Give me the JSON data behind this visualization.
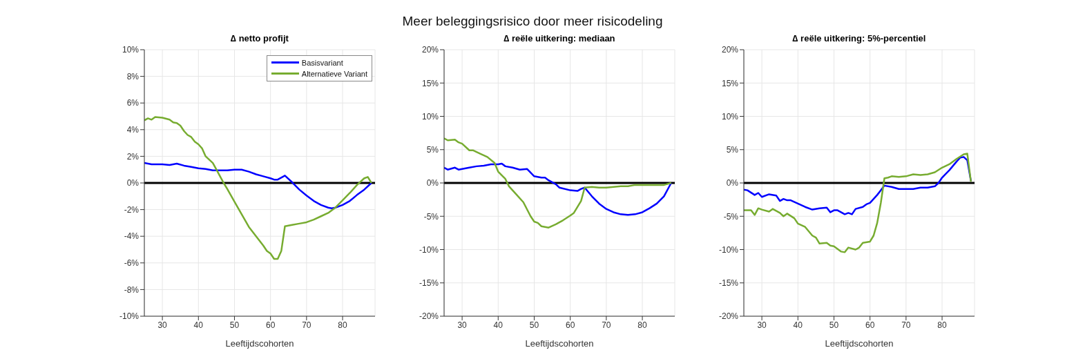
{
  "chart_data": [
    {
      "type": "line",
      "title": "∆ netto profijt",
      "xlabel": "Leeftijdscohorten",
      "annotations": [
        "Meer beleggingsrisico door meer risicodeling"
      ],
      "xlim": [
        25,
        89
      ],
      "xticks": [
        30,
        40,
        50,
        60,
        70,
        80
      ],
      "ylim": [
        -10,
        10
      ],
      "yticks": [
        {
          "value": -10,
          "label": "-10%"
        },
        {
          "value": -8,
          "label": "-8%"
        },
        {
          "value": -6,
          "label": "-6%"
        },
        {
          "value": -4,
          "label": "-4%"
        },
        {
          "value": -2,
          "label": "-2%"
        },
        {
          "value": 0,
          "label": "0%"
        },
        {
          "value": 2,
          "label": "2%"
        },
        {
          "value": 4,
          "label": "4%"
        },
        {
          "value": 6,
          "label": "6%"
        },
        {
          "value": 8,
          "label": "8%"
        },
        {
          "value": 10,
          "label": "10%"
        }
      ],
      "grid": true,
      "legend": "top right",
      "line_style": "solid",
      "marker": "none",
      "ref_lines": [
        {
          "axis": "y",
          "value": 0,
          "color": "#000000"
        }
      ],
      "series": [
        {
          "name": "Basisvariant",
          "color": "#0000ff",
          "x": [
            25,
            27,
            30,
            32,
            34,
            36,
            38,
            40,
            42,
            44,
            46,
            48,
            50,
            52,
            54,
            56,
            58,
            60,
            61,
            62,
            64,
            66,
            68,
            70,
            72,
            74,
            76,
            77,
            78,
            80,
            82,
            84,
            86,
            88
          ],
          "values": [
            1.5,
            1.4,
            1.4,
            1.35,
            1.45,
            1.3,
            1.2,
            1.1,
            1.05,
            0.95,
            0.95,
            0.95,
            1.0,
            1.0,
            0.85,
            0.65,
            0.5,
            0.35,
            0.25,
            0.25,
            0.55,
            0.05,
            -0.5,
            -0.95,
            -1.35,
            -1.65,
            -1.85,
            -1.9,
            -1.85,
            -1.65,
            -1.35,
            -0.9,
            -0.5,
            0
          ]
        },
        {
          "name": "Alternatieve Variant",
          "color": "#77ac30",
          "x": [
            25,
            26,
            27,
            28,
            30,
            32,
            33,
            34,
            35,
            36,
            37,
            38,
            39,
            40,
            41,
            42,
            44,
            45,
            46,
            47,
            48,
            50,
            52,
            54,
            56,
            58,
            59,
            60,
            61,
            62,
            63,
            64,
            66,
            68,
            70,
            72,
            74,
            76,
            78,
            80,
            82,
            84,
            86,
            87,
            88
          ],
          "values": [
            4.7,
            4.85,
            4.75,
            4.95,
            4.9,
            4.75,
            4.55,
            4.5,
            4.3,
            3.9,
            3.6,
            3.45,
            3.1,
            2.9,
            2.6,
            2.0,
            1.5,
            1.0,
            0.5,
            0.0,
            -0.45,
            -1.4,
            -2.35,
            -3.3,
            -4.0,
            -4.7,
            -5.1,
            -5.3,
            -5.7,
            -5.7,
            -5.1,
            -3.25,
            -3.15,
            -3.05,
            -2.95,
            -2.75,
            -2.5,
            -2.25,
            -1.85,
            -1.3,
            -0.75,
            -0.15,
            0.35,
            0.45,
            0.0
          ]
        }
      ]
    },
    {
      "type": "line",
      "title": "∆ reële uitkering: mediaan",
      "xlabel": "Leeftijdscohorten",
      "xlim": [
        25,
        89
      ],
      "xticks": [
        30,
        40,
        50,
        60,
        70,
        80
      ],
      "ylim": [
        -20,
        20
      ],
      "yticks": [
        {
          "value": -20,
          "label": "-20%"
        },
        {
          "value": -15,
          "label": "-15%"
        },
        {
          "value": -10,
          "label": "-10%"
        },
        {
          "value": -5,
          "label": "-5%"
        },
        {
          "value": 0,
          "label": "0%"
        },
        {
          "value": 5,
          "label": "5%"
        },
        {
          "value": 10,
          "label": "10%"
        },
        {
          "value": 15,
          "label": "15%"
        },
        {
          "value": 20,
          "label": "20%"
        }
      ],
      "grid": true,
      "line_style": "solid",
      "marker": "none",
      "ref_lines": [
        {
          "axis": "y",
          "value": 0,
          "color": "#000000"
        }
      ],
      "series": [
        {
          "color": "#0000ff",
          "x": [
            25,
            26,
            28,
            29,
            30,
            32,
            34,
            36,
            38,
            40,
            41,
            42,
            44,
            46,
            48,
            50,
            52,
            53,
            54,
            56,
            57,
            60,
            62,
            63,
            64,
            66,
            68,
            70,
            72,
            74,
            76,
            78,
            80,
            82,
            84,
            86,
            88
          ],
          "values": [
            2.3,
            2.0,
            2.3,
            2.0,
            2.1,
            2.3,
            2.5,
            2.6,
            2.8,
            2.8,
            2.9,
            2.5,
            2.3,
            2.0,
            2.1,
            1.0,
            0.8,
            0.8,
            0.4,
            -0.2,
            -0.7,
            -1.1,
            -1.2,
            -0.9,
            -0.7,
            -2.0,
            -3.1,
            -3.9,
            -4.4,
            -4.7,
            -4.8,
            -4.7,
            -4.4,
            -3.8,
            -3.1,
            -2.0,
            0
          ]
        },
        {
          "color": "#77ac30",
          "x": [
            25,
            26,
            28,
            29,
            30,
            32,
            33,
            35,
            37,
            39,
            40,
            42,
            43,
            45,
            47,
            49,
            50,
            51,
            52,
            54,
            56,
            58,
            60,
            61,
            63,
            64,
            66,
            68,
            70,
            72,
            74,
            76,
            78,
            80,
            82,
            84,
            86,
            88
          ],
          "values": [
            6.7,
            6.4,
            6.5,
            6.1,
            5.9,
            4.9,
            4.9,
            4.4,
            3.9,
            3.0,
            1.7,
            0.6,
            -0.5,
            -1.7,
            -2.9,
            -5.0,
            -5.8,
            -6.0,
            -6.5,
            -6.7,
            -6.2,
            -5.6,
            -4.9,
            -4.5,
            -2.7,
            -0.7,
            -0.6,
            -0.7,
            -0.7,
            -0.6,
            -0.5,
            -0.5,
            -0.3,
            -0.3,
            -0.3,
            -0.3,
            -0.3,
            0
          ]
        }
      ]
    },
    {
      "type": "line",
      "title": "∆ reële uitkering: 5%-percentiel",
      "xlabel": "Leeftijdscohorten",
      "xlim": [
        25,
        89
      ],
      "xticks": [
        30,
        40,
        50,
        60,
        70,
        80
      ],
      "ylim": [
        -20,
        20
      ],
      "yticks": [
        {
          "value": -20,
          "label": "-20%"
        },
        {
          "value": -15,
          "label": "-15%"
        },
        {
          "value": -10,
          "label": "-10%"
        },
        {
          "value": -5,
          "label": "-5%"
        },
        {
          "value": 0,
          "label": "0%"
        },
        {
          "value": 5,
          "label": "5%"
        },
        {
          "value": 10,
          "label": "10%"
        },
        {
          "value": 15,
          "label": "15%"
        },
        {
          "value": 20,
          "label": "20%"
        }
      ],
      "grid": true,
      "line_style": "solid",
      "marker": "none",
      "ref_lines": [
        {
          "axis": "y",
          "value": 0,
          "color": "#000000"
        }
      ],
      "series": [
        {
          "color": "#0000ff",
          "x": [
            25,
            26,
            28,
            29,
            30,
            32,
            34,
            35,
            36,
            37,
            38,
            40,
            42,
            44,
            46,
            48,
            49,
            50,
            51,
            53,
            54,
            55,
            56,
            58,
            59,
            60,
            62,
            64,
            66,
            68,
            70,
            72,
            74,
            76,
            78,
            79,
            80,
            82,
            84,
            85,
            86,
            87,
            88
          ],
          "values": [
            -1.0,
            -1.1,
            -1.8,
            -1.5,
            -2.1,
            -1.7,
            -1.9,
            -2.7,
            -2.4,
            -2.6,
            -2.6,
            -3.1,
            -3.6,
            -4.0,
            -3.8,
            -3.7,
            -4.4,
            -4.1,
            -4.1,
            -4.7,
            -4.5,
            -4.7,
            -3.9,
            -3.6,
            -3.2,
            -3.0,
            -1.8,
            -0.4,
            -0.6,
            -0.9,
            -0.9,
            -0.9,
            -0.7,
            -0.7,
            -0.5,
            0.0,
            0.8,
            1.9,
            3.2,
            3.8,
            3.9,
            3.4,
            0.3
          ]
        },
        {
          "color": "#77ac30",
          "x": [
            25,
            27,
            28,
            29,
            30,
            32,
            33,
            35,
            36,
            37,
            39,
            40,
            42,
            44,
            45,
            46,
            48,
            49,
            50,
            52,
            53,
            54,
            56,
            57,
            58,
            60,
            61,
            62,
            63,
            64,
            65,
            66,
            68,
            70,
            72,
            74,
            76,
            78,
            80,
            82,
            84,
            86,
            87,
            88
          ],
          "values": [
            -4.1,
            -4.1,
            -4.8,
            -3.8,
            -4.0,
            -4.3,
            -3.9,
            -4.5,
            -5.0,
            -4.6,
            -5.3,
            -6.1,
            -6.6,
            -7.9,
            -8.2,
            -9.1,
            -9.0,
            -9.4,
            -9.5,
            -10.3,
            -10.4,
            -9.7,
            -10.0,
            -9.7,
            -9.0,
            -8.8,
            -7.9,
            -6.0,
            -3.0,
            0.7,
            0.8,
            1.0,
            0.9,
            1.0,
            1.3,
            1.2,
            1.3,
            1.6,
            2.3,
            2.8,
            3.6,
            4.3,
            4.4,
            0.2
          ]
        }
      ]
    }
  ]
}
